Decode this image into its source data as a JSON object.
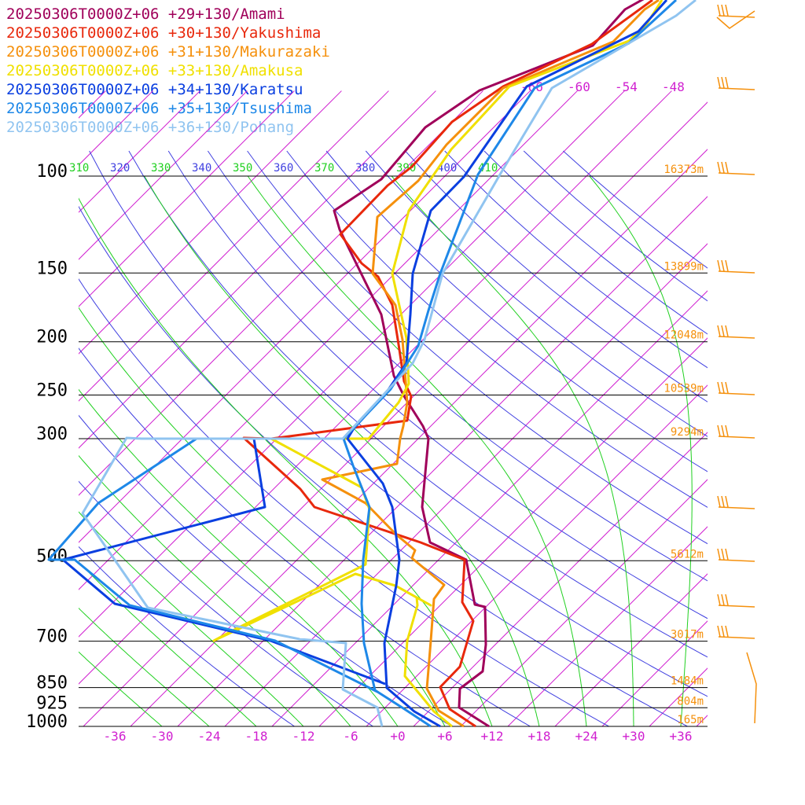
{
  "chart_data": {
    "type": "line",
    "title": "",
    "xlabel": "",
    "ylabel": "",
    "xlim": [
      -40,
      40
    ],
    "pressure_range": [
      100,
      1000
    ],
    "series": [
      {
        "name": "20250306T0000Z+06 +29+130/Amami",
        "color": "#a0005a"
      },
      {
        "name": "20250306T0000Z+06 +30+130/Yakushima",
        "color": "#e8280c"
      },
      {
        "name": "20250306T0000Z+06 +31+130/Makurazaki",
        "color": "#f5900c"
      },
      {
        "name": "20250306T0000Z+06 +33+130/Amakusa",
        "color": "#f0e000"
      },
      {
        "name": "20250306T0000Z+06 +34+130/Karatsu",
        "color": "#0a3fe0"
      },
      {
        "name": "20250306T0000Z+06 +35+130/Tsushima",
        "color": "#1e88e8"
      },
      {
        "name": "20250306T0000Z+06 +36+130/Pohang",
        "color": "#90c4f0"
      }
    ],
    "pressure_levels": [
      {
        "label": "100",
        "height": "16373m"
      },
      {
        "label": "150",
        "height": "13899m"
      },
      {
        "label": "200",
        "height": "12048m"
      },
      {
        "label": "250",
        "height": "10539m"
      },
      {
        "label": "300",
        "height": "9294m"
      },
      {
        "label": "500",
        "height": "5612m"
      },
      {
        "label": "700",
        "height": "3017m"
      },
      {
        "label": "850",
        "height": "1484m"
      },
      {
        "label": "925",
        "height": "804m"
      },
      {
        "label": "1000",
        "height": "165m"
      }
    ],
    "temperature_ticks": [
      "-36",
      "-30",
      "-24",
      "-18",
      "-12",
      "-6",
      "+0",
      "+6",
      "+12",
      "+18",
      "+24",
      "+30",
      "+36"
    ],
    "theta_labels": [
      "310",
      "320",
      "330",
      "340",
      "350",
      "360",
      "370",
      "380",
      "390",
      "400",
      "410"
    ],
    "upper_temp_labels": [
      "-66",
      "-60",
      "-54",
      "-48"
    ],
    "colors": {
      "isotherm": "#d020d0",
      "dry_adiabat": "#4040e0",
      "moist_adiabat": "#20d020",
      "barb": "#f5900c",
      "level_line": "#000000",
      "height_label": "#f5900c"
    }
  }
}
